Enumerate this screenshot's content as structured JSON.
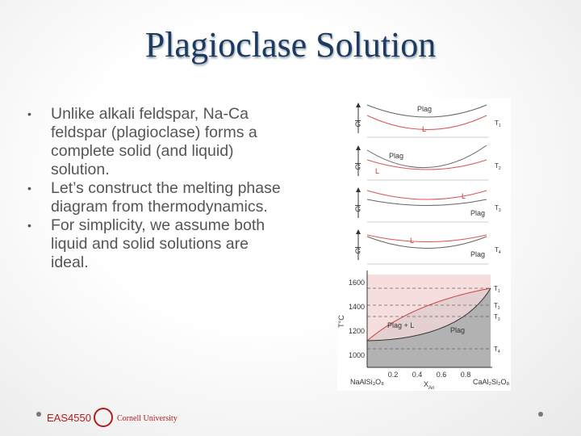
{
  "title": "Plagioclase Solution",
  "bullets": [
    "Unlike alkali feldspar, Na-Ca feldspar (plagioclase) forms a complete solid (and liquid) solution.",
    "Let’s construct the melting phase diagram from thermodynamics.",
    "For simplicity, we assume both liquid and solid solutions are ideal."
  ],
  "figure": {
    "free_energy_label": "G",
    "panels": [
      {
        "solid": "Plag",
        "liquid": "L",
        "temperature": {
          "base": "T",
          "sub": "1"
        }
      },
      {
        "solid": "Plag",
        "liquid": "L",
        "temperature": {
          "base": "T",
          "sub": "2"
        }
      },
      {
        "solid": "Plag",
        "liquid": "L",
        "temperature": {
          "base": "T",
          "sub": "3"
        }
      },
      {
        "solid": "Plag",
        "liquid": "L",
        "temperature": {
          "base": "T",
          "sub": "4"
        }
      }
    ],
    "phase_diagram": {
      "y_label": "T°C",
      "y_ticks": [
        "1600",
        "1400",
        "1200",
        "1000"
      ],
      "x_ticks": [
        "0.2",
        "0.4",
        "0.6",
        "0.8"
      ],
      "left_end": "NaAlSi₃O₈",
      "right_end": "CaAl₂Si₂O₈",
      "x_label": {
        "base": "X",
        "sub": "An"
      },
      "regions": [
        "Plag + L",
        "Plag"
      ]
    }
  },
  "footer": {
    "course": "EAS4550",
    "university": "Cornell University"
  }
}
